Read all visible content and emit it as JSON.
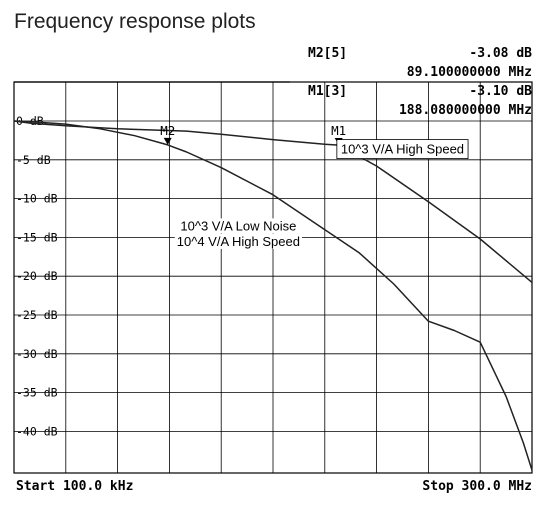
{
  "page_title": "Frequency response plots",
  "markers_readout": [
    {
      "name": "M2[5]",
      "value": "-3.08 dB",
      "freq": "89.100000000 MHz"
    },
    {
      "name": "M1[3]",
      "value": "-3.10 dB",
      "freq": "188.080000000 MHz"
    }
  ],
  "x_axis": {
    "start_label": "Start 100.0 kHz",
    "stop_label": "Stop 300.0 MHz"
  },
  "chart_data": {
    "type": "line",
    "title": "Frequency response plots",
    "xlabel": "",
    "ylabel": "",
    "x_unit": "MHz",
    "xlim": [
      0.1,
      300.0
    ],
    "ylim": [
      -45,
      0
    ],
    "y_ticks": [
      {
        "value": 0,
        "label": "0 dB"
      },
      {
        "value": -5,
        "label": "-5 dB"
      },
      {
        "value": -10,
        "label": "-10 dB"
      },
      {
        "value": -15,
        "label": "-15 dB"
      },
      {
        "value": -20,
        "label": "-20 dB"
      },
      {
        "value": -25,
        "label": "-25 dB"
      },
      {
        "value": -30,
        "label": "-30 dB"
      },
      {
        "value": -35,
        "label": "-35 dB"
      },
      {
        "value": -40,
        "label": "-40 dB"
      }
    ],
    "grid": true,
    "series": [
      {
        "name": "10^3 V/A High Speed",
        "x": [
          0.1,
          10,
          30,
          60,
          100,
          120,
          150,
          180,
          188.08,
          210,
          240,
          270,
          300
        ],
        "y": [
          0,
          -0.3,
          -0.6,
          -1.0,
          -1.3,
          -1.7,
          -2.4,
          -3.0,
          -3.1,
          -5.8,
          -10.4,
          -15.2,
          -20.8
        ]
      },
      {
        "name": "10^3 V/A Low Noise\n10^4 V/A High Speed",
        "x": [
          0.1,
          10,
          30,
          50,
          70,
          89.1,
          100,
          120,
          150,
          180,
          200,
          220,
          240,
          255,
          270,
          285,
          295,
          300
        ],
        "y": [
          0,
          -0.1,
          -0.4,
          -1.0,
          -1.9,
          -3.08,
          -4.0,
          -6.0,
          -9.5,
          -14.0,
          -17.0,
          -21.0,
          -25.8,
          -27.0,
          -28.5,
          -35.5,
          -41.5,
          -45.0
        ]
      }
    ],
    "markers": [
      {
        "label": "M1",
        "series": 0,
        "x": 188.08,
        "y": -3.1
      },
      {
        "label": "M2",
        "series": 1,
        "x": 89.1,
        "y": -3.08
      }
    ],
    "annotations": [
      {
        "text": "10^3 V/A High Speed",
        "x": 225,
        "y": -4.2,
        "boxed": true
      },
      {
        "text": "10^3 V/A Low Noise",
        "x": 130,
        "y": -14.1
      },
      {
        "text": "10^4 V/A High Speed",
        "x": 130,
        "y": -16.1
      }
    ]
  }
}
